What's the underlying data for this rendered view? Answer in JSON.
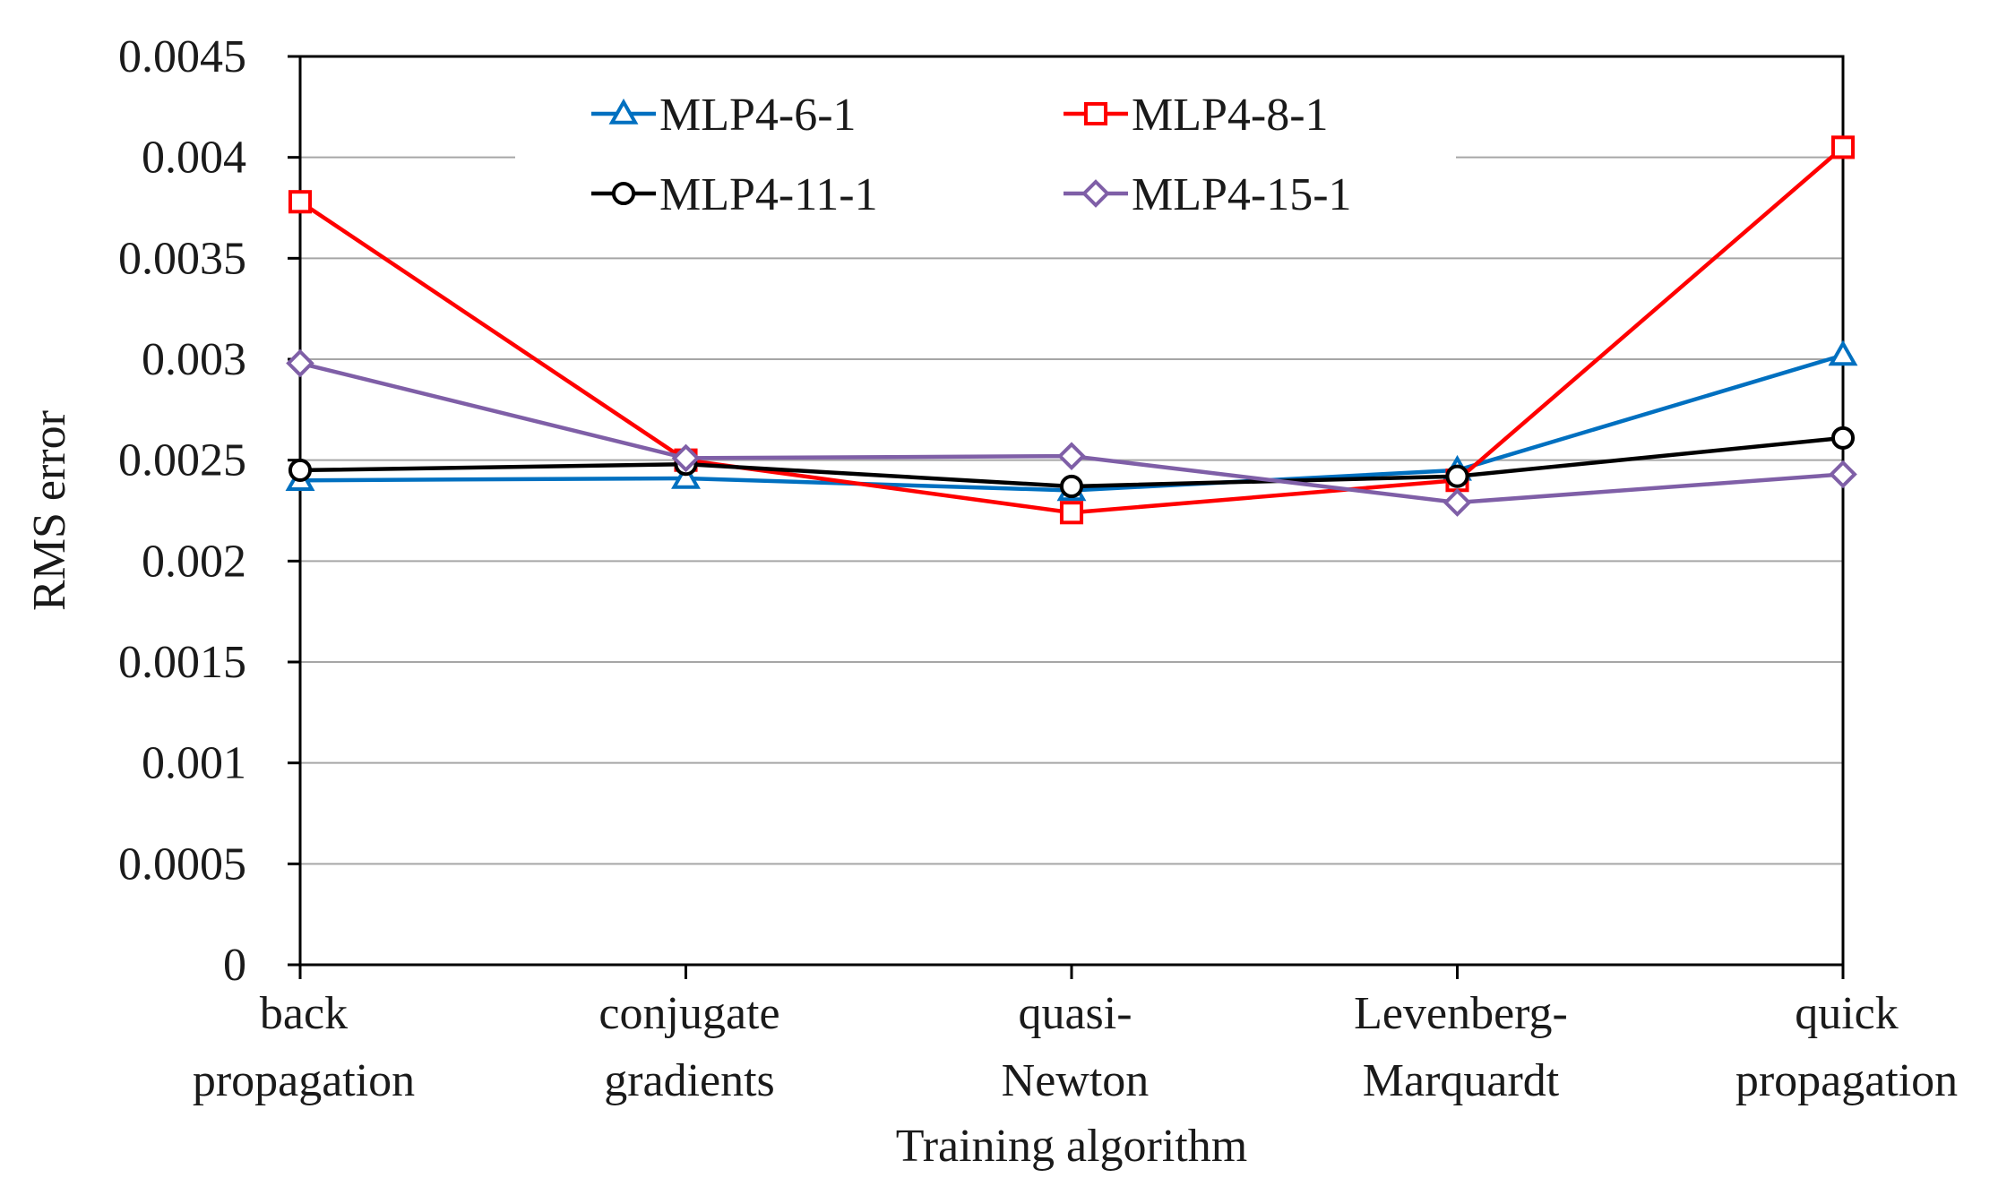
{
  "chart_data": {
    "type": "line",
    "title": "",
    "xlabel": "Training algorithm",
    "ylabel": "RMS error",
    "ylim": [
      0,
      0.0045
    ],
    "yticks": [
      "0",
      "0.0005",
      "0.001",
      "0.0015",
      "0.002",
      "0.0025",
      "0.003",
      "0.0035",
      "0.004",
      "0.0045"
    ],
    "grid": true,
    "legend_position": "top",
    "categories": [
      [
        "back",
        "propagation"
      ],
      [
        "conjugate",
        "gradients"
      ],
      [
        "quasi-",
        "Newton"
      ],
      [
        "Levenberg-",
        "Marquardt"
      ],
      [
        "quick",
        "propagation"
      ]
    ],
    "series": [
      {
        "name": "MLP4-6-1",
        "color": "#0070c0",
        "marker": "triangle",
        "values": [
          0.0024,
          0.00241,
          0.00235,
          0.00245,
          0.00302
        ]
      },
      {
        "name": "MLP4-8-1",
        "color": "#ff0000",
        "marker": "square",
        "values": [
          0.00378,
          0.0025,
          0.00224,
          0.0024,
          0.00405
        ]
      },
      {
        "name": "MLP4-11-1",
        "color": "#000000",
        "marker": "circle",
        "values": [
          0.00245,
          0.00248,
          0.00237,
          0.00242,
          0.00261
        ]
      },
      {
        "name": "MLP4-15-1",
        "color": "#7f5fa7",
        "marker": "diamond",
        "values": [
          0.00298,
          0.00251,
          0.00252,
          0.00229,
          0.00243
        ]
      }
    ]
  }
}
